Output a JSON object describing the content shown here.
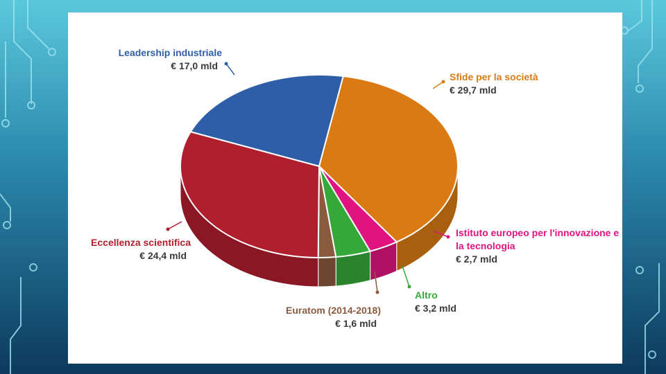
{
  "chart_data": {
    "type": "pie",
    "categories": [
      "Sfide per la società",
      "Istituto europeo per l'innovazione e la tecnologia",
      "Altro",
      "Euratom (2014-2018)",
      "Eccellenza scientifica",
      "Leadership industriale"
    ],
    "values": [
      29.7,
      2.7,
      3.2,
      1.6,
      24.4,
      17.0
    ],
    "value_labels": [
      "€ 29,7 mld",
      "€ 2,7 mld",
      "€ 3,2 mld",
      "€ 1,6 mld",
      "€ 24,4 mld",
      "€ 17,0 mld"
    ],
    "colors": [
      "#d97b12",
      "#e0147f",
      "#36a83a",
      "#8a5a3e",
      "#b11e2d",
      "#2f5ea8"
    ]
  }
}
